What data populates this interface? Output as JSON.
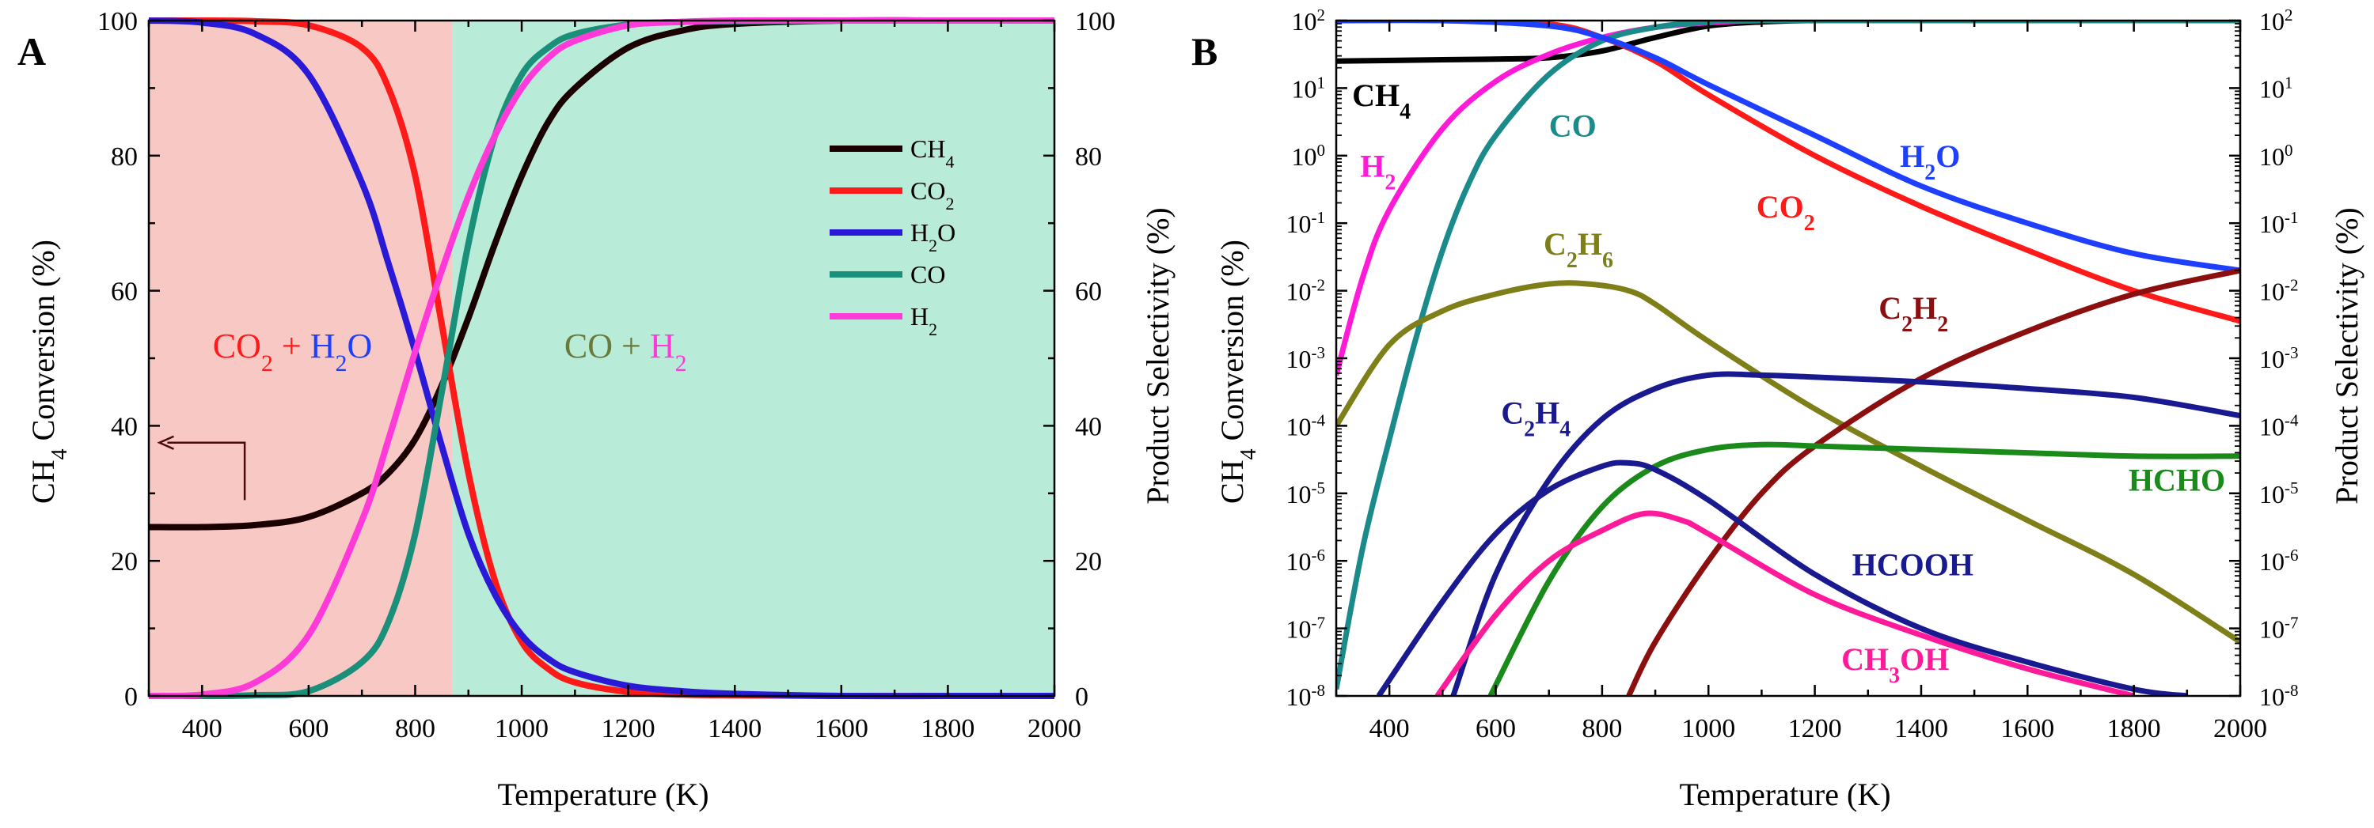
{
  "chart_data": [
    {
      "panel": "A",
      "type": "line",
      "title": "",
      "xlabel": "Temperature (K)",
      "ylabel_left_parts": [
        "CH",
        "4",
        " Conversion (%)"
      ],
      "ylabel_right": "Product Selectivity (%)",
      "xlim": [
        300,
        2000
      ],
      "ylim": [
        0,
        100
      ],
      "xticks": [
        "400",
        "600",
        "800",
        "1000",
        "1200",
        "1400",
        "1600",
        "1800",
        "2000"
      ],
      "yticks": [
        "0",
        "20",
        "40",
        "60",
        "80",
        "100"
      ],
      "regions": [
        {
          "x_from": 300,
          "x_to": 870,
          "color": "#f8c8c4"
        },
        {
          "x_from": 870,
          "x_to": 2000,
          "color": "#b8ebd8"
        }
      ],
      "region_labels": [
        {
          "parts": [
            {
              "t": "CO",
              "c": "#ff1a1a"
            },
            {
              "t": "2",
              "c": "#ff1a1a",
              "sub": true
            },
            {
              "t": " + ",
              "c": "#ff1a1a"
            },
            {
              "t": "H",
              "c": "#1f3fff"
            },
            {
              "t": "2",
              "c": "#1f3fff",
              "sub": true
            },
            {
              "t": "O",
              "c": "#1f3fff"
            }
          ],
          "x": 420,
          "y": 52
        },
        {
          "parts": [
            {
              "t": "CO",
              "c": "#6b7a3a"
            },
            {
              "t": " + ",
              "c": "#6b7a3a"
            },
            {
              "t": "H",
              "c": "#ff3ad8"
            },
            {
              "t": "2",
              "c": "#ff3ad8",
              "sub": true
            }
          ],
          "x": 1080,
          "y": 52
        }
      ],
      "arrow": {
        "from": [
          480,
          29
        ],
        "corner": [
          480,
          37.5
        ],
        "to": [
          320,
          37.5
        ],
        "color": "#4a0a0a"
      },
      "x": [
        300,
        400,
        500,
        600,
        700,
        750,
        800,
        850,
        900,
        950,
        1000,
        1050,
        1100,
        1200,
        1300,
        1400,
        1600,
        1800,
        2000
      ],
      "series": [
        {
          "name": "CH4",
          "label_main": "CH",
          "label_sub": "4",
          "color": "#1a0000",
          "values": [
            25,
            25,
            25.3,
            26.5,
            30,
            33,
            38,
            46,
            56,
            67,
            77,
            85,
            90,
            96,
            98.5,
            99.5,
            100,
            100,
            100
          ]
        },
        {
          "name": "CO2",
          "label_main": "CO",
          "label_sub": "2",
          "color": "#ff1a1a",
          "values": [
            100,
            100,
            99.9,
            99.3,
            96,
            90,
            77,
            55,
            33,
            17,
            8,
            4,
            2,
            0.6,
            0.2,
            0.1,
            0,
            0,
            0
          ]
        },
        {
          "name": "H2O",
          "label_main": "H",
          "label_sub": "2",
          "label_tail": "O",
          "color": "#2a1ad8",
          "values": [
            100,
            99.7,
            98,
            92,
            76,
            64,
            51,
            37,
            24,
            15,
            9,
            5.5,
            3.5,
            1.5,
            0.7,
            0.3,
            0,
            0,
            0
          ]
        },
        {
          "name": "CO",
          "label_main": "CO",
          "label_sub": "",
          "color": "#1a8f7a",
          "values": [
            0,
            0,
            0.1,
            0.7,
            5,
            11,
            24,
            45,
            67,
            83,
            92,
            96,
            98,
            99.4,
            99.8,
            99.9,
            100,
            100,
            100
          ]
        },
        {
          "name": "H2",
          "label_main": "H",
          "label_sub": "2",
          "color": "#ff3ad8",
          "values": [
            0,
            0.2,
            2,
            9,
            26,
            38,
            51,
            63,
            74,
            83,
            90,
            94.5,
            97,
            99.3,
            99.8,
            100,
            100,
            100,
            100
          ]
        }
      ]
    },
    {
      "panel": "B",
      "type": "line",
      "yscale": "log",
      "title": "",
      "xlabel": "Temperature (K)",
      "ylabel_left_parts": [
        "CH",
        "4",
        " Conversion (%)"
      ],
      "ylabel_right": "Product Selectivity (%)",
      "xlim": [
        300,
        2000
      ],
      "ylim_exp": [
        -8,
        2
      ],
      "xticks": [
        "400",
        "600",
        "800",
        "1000",
        "1200",
        "1400",
        "1600",
        "1800",
        "2000"
      ],
      "ytick_exponents": [
        "-8",
        "-7",
        "-6",
        "-5",
        "-4",
        "-3",
        "-2",
        "-1",
        "0",
        "1",
        "2"
      ],
      "ytick_base": "10",
      "series": [
        {
          "name": "CH4",
          "label_main": "CH",
          "label_sub": "4",
          "color": "#000000",
          "label_x": 330,
          "label_log": 0.9,
          "x": [
            300,
            500,
            600,
            700,
            800,
            900,
            1000,
            1100,
            1200,
            1400,
            2000
          ],
          "log10": [
            1.4,
            1.42,
            1.43,
            1.45,
            1.55,
            1.75,
            1.92,
            1.98,
            2.0,
            2.0,
            2.0
          ]
        },
        {
          "name": "H2",
          "label_main": "H",
          "label_sub": "2",
          "color": "#ff1ad8",
          "label_x": 345,
          "label_log": -0.15,
          "x": [
            300,
            350,
            400,
            500,
            600,
            700,
            800,
            900,
            1000,
            1100,
            1200,
            2000
          ],
          "log10": [
            -3.25,
            -1.8,
            -0.8,
            0.4,
            1.1,
            1.5,
            1.75,
            1.9,
            1.97,
            2.0,
            2.0,
            2.0
          ]
        },
        {
          "name": "CO",
          "label_main": "CO",
          "label_sub": "",
          "color": "#1a8a8a",
          "label_x": 700,
          "label_log": 0.45,
          "x": [
            300,
            350,
            400,
            450,
            500,
            550,
            600,
            700,
            800,
            900,
            1000,
            1100,
            2000
          ],
          "log10": [
            -7.9,
            -5.8,
            -4.2,
            -2.7,
            -1.4,
            -0.4,
            0.3,
            1.2,
            1.7,
            1.9,
            1.98,
            2.0,
            2.0
          ]
        },
        {
          "name": "CO2",
          "label_main": "CO",
          "label_sub": "2",
          "color": "#ff1a1a",
          "label_x": 1090,
          "label_log": -0.75,
          "x": [
            300,
            500,
            700,
            800,
            900,
            1000,
            1200,
            1400,
            1600,
            1800,
            2000
          ],
          "log10": [
            2.0,
            2.0,
            1.95,
            1.75,
            1.4,
            0.9,
            0.0,
            -0.75,
            -1.4,
            -2.0,
            -2.45
          ]
        },
        {
          "name": "H2O",
          "label_main": "H",
          "label_sub": "2",
          "label_tail": "O",
          "color": "#1f3fff",
          "label_x": 1360,
          "label_log": 0.0,
          "x": [
            300,
            500,
            700,
            800,
            900,
            1000,
            1200,
            1400,
            1600,
            1800,
            2000
          ],
          "log10": [
            2.0,
            2.0,
            1.92,
            1.75,
            1.45,
            1.05,
            0.3,
            -0.45,
            -1.0,
            -1.45,
            -1.7
          ]
        },
        {
          "name": "C2H6",
          "label_main": "C",
          "label_sub": "2",
          "label_tail": "H",
          "label_sub2": "6",
          "color": "#7f7f1a",
          "label_x": 690,
          "label_log": -1.3,
          "x": [
            300,
            400,
            500,
            600,
            700,
            775,
            850,
            900,
            1000,
            1200,
            1400,
            1600,
            1800,
            2000
          ],
          "log10": [
            -4.0,
            -2.8,
            -2.3,
            -2.05,
            -1.9,
            -1.9,
            -2.0,
            -2.2,
            -2.75,
            -3.75,
            -4.6,
            -5.4,
            -6.2,
            -7.2
          ]
        },
        {
          "name": "C2H2",
          "label_main": "C",
          "label_sub": "2",
          "label_tail": "H",
          "label_sub2": "2",
          "color": "#8b0f0f",
          "label_x": 1320,
          "label_log": -2.25,
          "x": [
            850,
            900,
            1000,
            1100,
            1200,
            1400,
            1600,
            1800,
            2000
          ],
          "log10": [
            -8.0,
            -7.2,
            -6.0,
            -5.0,
            -4.3,
            -3.3,
            -2.6,
            -2.05,
            -1.7
          ]
        },
        {
          "name": "C2H4",
          "label_main": "C",
          "label_sub": "2",
          "label_tail": "H",
          "label_sub2": "4",
          "color": "#1a1a90",
          "label_x": 610,
          "label_log": -3.8,
          "x": [
            520,
            600,
            700,
            800,
            900,
            1000,
            1100,
            1200,
            1400,
            1600,
            1800,
            2000
          ],
          "log10": [
            -8.0,
            -6.2,
            -4.8,
            -3.9,
            -3.45,
            -3.25,
            -3.25,
            -3.28,
            -3.35,
            -3.45,
            -3.58,
            -3.85
          ]
        },
        {
          "name": "HCHO",
          "label_main": "HCHO",
          "label_sub": "",
          "color": "#1a8a1a",
          "label_x": 1790,
          "label_log": -4.8,
          "x": [
            590,
            700,
            800,
            900,
            1000,
            1100,
            1200,
            1400,
            1600,
            1800,
            2000
          ],
          "log10": [
            -8.0,
            -6.3,
            -5.2,
            -4.6,
            -4.35,
            -4.28,
            -4.3,
            -4.35,
            -4.4,
            -4.45,
            -4.45
          ]
        },
        {
          "name": "HCOOH",
          "label_main": "HCOOH",
          "label_sub": "",
          "color": "#1a1a90",
          "label_x": 1270,
          "label_log": -6.05,
          "x": [
            380,
            500,
            600,
            700,
            800,
            850,
            900,
            1000,
            1200,
            1400,
            1600,
            1800,
            1900
          ],
          "log10": [
            -8.0,
            -6.6,
            -5.6,
            -4.95,
            -4.6,
            -4.55,
            -4.65,
            -5.1,
            -6.2,
            -7.0,
            -7.5,
            -7.9,
            -8.0
          ]
        },
        {
          "name": "CH3OH",
          "label_main": "CH",
          "label_sub": "3",
          "label_tail": "OH",
          "color": "#ff1a9a",
          "label_x": 1250,
          "label_log": -7.45,
          "x": [
            490,
            600,
            700,
            800,
            880,
            950,
            1000,
            1200,
            1400,
            1600,
            1800
          ],
          "log10": [
            -8.0,
            -6.8,
            -6.0,
            -5.55,
            -5.3,
            -5.4,
            -5.6,
            -6.5,
            -7.1,
            -7.6,
            -8.0
          ]
        }
      ]
    }
  ],
  "panel_labels": [
    "A",
    "B"
  ]
}
